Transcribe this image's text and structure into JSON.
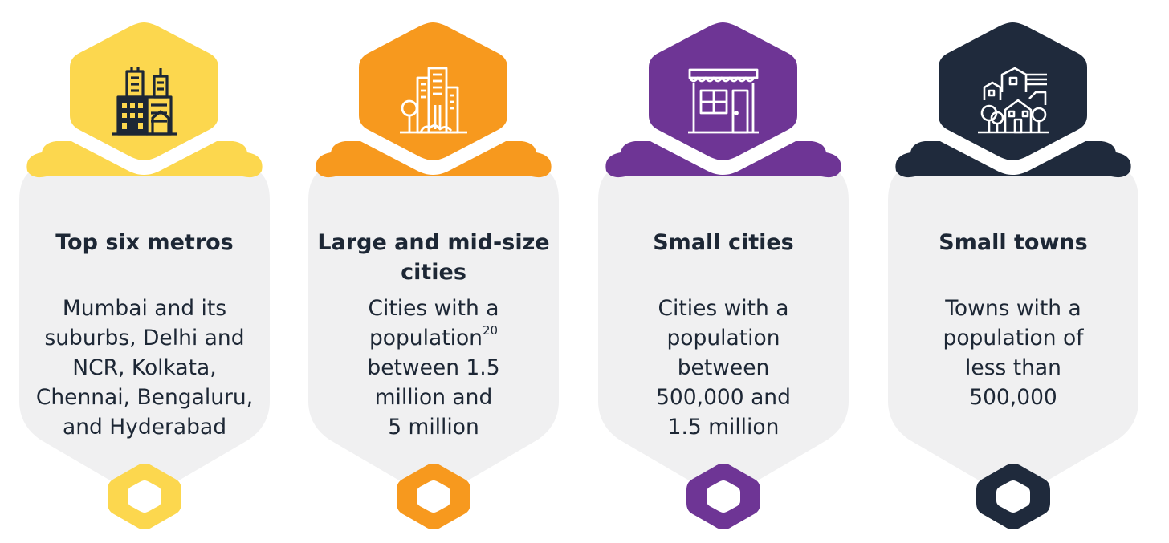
{
  "segments": [
    {
      "id": "metros",
      "color": "#fcd74e",
      "icon": "skyscrapers-icon",
      "icon_color": "#1d2735",
      "title": [
        "Top six metros"
      ],
      "description": [
        "Mumbai and its",
        "suburbs, Delhi and",
        "NCR, Kolkata,",
        "Chennai, Bengaluru,",
        "and Hyderabad"
      ]
    },
    {
      "id": "large-cities",
      "color": "#f7991e",
      "icon": "city-buildings-icon",
      "icon_color": "#ffffff",
      "title": [
        "Large and mid-size",
        "cities"
      ],
      "description": [
        "Cities with a",
        "population",
        "between 1.5",
        "million and",
        "5 million"
      ],
      "footnote": "20"
    },
    {
      "id": "small-cities",
      "color": "#6e3595",
      "icon": "storefront-icon",
      "icon_color": "#ffffff",
      "title": [
        "Small cities"
      ],
      "description": [
        "Cities with a",
        "population",
        "between",
        "500,000 and",
        "1.5 million"
      ]
    },
    {
      "id": "small-towns",
      "color": "#1f2a3c",
      "icon": "village-houses-icon",
      "icon_color": "#ffffff",
      "title": [
        "Small towns"
      ],
      "description": [
        "Towns with a",
        "population of",
        "less than",
        "500,000"
      ]
    }
  ]
}
